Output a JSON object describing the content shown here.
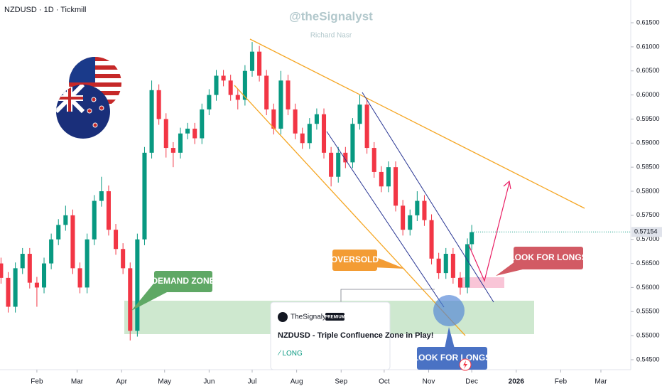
{
  "chart_data": {
    "type": "candlestick",
    "title": "NZDUSD · 1D · Tickmill",
    "watermark": "@theSignalyst",
    "subtitle": "Richard Nasr",
    "up_color": "#089981",
    "down_color": "#f23645",
    "xlim": [
      5.3,
      444.8
    ],
    "ylim": [
      0.54293,
      0.61973
    ],
    "xticks": [
      {
        "value": 31,
        "label": "Feb"
      },
      {
        "value": 59,
        "label": "Mar"
      },
      {
        "value": 90,
        "label": "Apr"
      },
      {
        "value": 120,
        "label": "May"
      },
      {
        "value": 151,
        "label": "Jun"
      },
      {
        "value": 181,
        "label": "Jul"
      },
      {
        "value": 212,
        "label": "Aug"
      },
      {
        "value": 243,
        "label": "Sep"
      },
      {
        "value": 273,
        "label": "Oct"
      },
      {
        "value": 304,
        "label": "Nov"
      },
      {
        "value": 334,
        "label": "Dec"
      },
      {
        "value": 365,
        "label": "2026"
      },
      {
        "value": 396,
        "label": "Feb"
      },
      {
        "value": 424,
        "label": "Mar"
      }
    ],
    "yticks": [
      {
        "value": 0.545,
        "label": "0.54500"
      },
      {
        "value": 0.55,
        "label": "0.55000"
      },
      {
        "value": 0.555,
        "label": "0.55500"
      },
      {
        "value": 0.56,
        "label": "0.56000"
      },
      {
        "value": 0.565,
        "label": "0.56500"
      },
      {
        "value": 0.57,
        "label": "0.57000"
      },
      {
        "value": 0.575,
        "label": "0.57500"
      },
      {
        "value": 0.58,
        "label": "0.58000"
      },
      {
        "value": 0.585,
        "label": "0.58500"
      },
      {
        "value": 0.59,
        "label": "0.59000"
      },
      {
        "value": 0.595,
        "label": "0.59500"
      },
      {
        "value": 0.6,
        "label": "0.60000"
      },
      {
        "value": 0.605,
        "label": "0.60500"
      },
      {
        "value": 0.61,
        "label": "0.61000"
      },
      {
        "value": 0.615,
        "label": "0.61500"
      }
    ],
    "last_price": 0.57154,
    "x": [
      6,
      11,
      16,
      21,
      26,
      31,
      36,
      41,
      46,
      51,
      56,
      61,
      66,
      71,
      76,
      81,
      86,
      91,
      96,
      101,
      106,
      111,
      116,
      121,
      126,
      131,
      136,
      141,
      146,
      151,
      156,
      161,
      166,
      171,
      176,
      181,
      186,
      191,
      196,
      201,
      206,
      211,
      216,
      221,
      226,
      231,
      236,
      241,
      246,
      251,
      256,
      261,
      266,
      271,
      276,
      281,
      286,
      291,
      296,
      301,
      306,
      311,
      316,
      321,
      326,
      331,
      334
    ],
    "open": [
      0.565,
      0.562,
      0.556,
      0.564,
      0.567,
      0.561,
      0.56,
      0.565,
      0.57,
      0.573,
      0.575,
      0.564,
      0.56,
      0.57,
      0.578,
      0.58,
      0.572,
      0.568,
      0.564,
      0.551,
      0.57,
      0.588,
      0.601,
      0.595,
      0.589,
      0.588,
      0.592,
      0.593,
      0.591,
      0.597,
      0.6,
      0.604,
      0.603,
      0.6,
      0.599,
      0.605,
      0.609,
      0.604,
      0.597,
      0.593,
      0.603,
      0.597,
      0.592,
      0.59,
      0.594,
      0.596,
      0.588,
      0.583,
      0.588,
      0.586,
      0.594,
      0.598,
      0.589,
      0.584,
      0.581,
      0.585,
      0.577,
      0.572,
      0.575,
      0.578,
      0.574,
      0.566,
      0.563,
      0.567,
      0.562,
      0.56,
      0.569
    ],
    "high": [
      0.5662,
      0.5632,
      0.5652,
      0.5682,
      0.5682,
      0.5622,
      0.5662,
      0.5712,
      0.5742,
      0.577,
      0.5762,
      0.5652,
      0.5712,
      0.5792,
      0.583,
      0.5812,
      0.5732,
      0.5692,
      0.5652,
      0.5712,
      0.5892,
      0.603,
      0.6022,
      0.5962,
      0.5902,
      0.5932,
      0.5942,
      0.5942,
      0.5982,
      0.6012,
      0.6052,
      0.6052,
      0.6042,
      0.6012,
      0.6062,
      0.611,
      0.6102,
      0.6052,
      0.5982,
      0.605,
      0.6042,
      0.5982,
      0.5932,
      0.5952,
      0.5972,
      0.5972,
      0.5892,
      0.5892,
      0.5892,
      0.5952,
      0.6,
      0.5992,
      0.5902,
      0.5852,
      0.5862,
      0.5862,
      0.5782,
      0.5762,
      0.58,
      0.5792,
      0.5752,
      0.5672,
      0.5682,
      0.5682,
      0.5632,
      0.5702,
      0.573
    ],
    "low": [
      0.5608,
      0.5548,
      0.5548,
      0.5628,
      0.5598,
      0.556,
      0.5588,
      0.5638,
      0.5688,
      0.5718,
      0.5628,
      0.5588,
      0.5588,
      0.5688,
      0.5768,
      0.5708,
      0.5668,
      0.5628,
      0.549,
      0.5498,
      0.5688,
      0.5868,
      0.5938,
      0.587,
      0.585,
      0.5868,
      0.5908,
      0.5898,
      0.5898,
      0.5958,
      0.5988,
      0.6018,
      0.5988,
      0.597,
      0.5978,
      0.6038,
      0.6028,
      0.5958,
      0.5918,
      0.5918,
      0.5958,
      0.5908,
      0.5888,
      0.5888,
      0.5928,
      0.5868,
      0.581,
      0.5818,
      0.5848,
      0.5848,
      0.5928,
      0.5878,
      0.5828,
      0.5798,
      0.5798,
      0.5758,
      0.5708,
      0.5708,
      0.5738,
      0.5728,
      0.5648,
      0.5618,
      0.5618,
      0.5608,
      0.5585,
      0.5588,
      0.5678
    ],
    "close": [
      0.562,
      0.556,
      0.564,
      0.567,
      0.561,
      0.56,
      0.565,
      0.57,
      0.573,
      0.575,
      0.564,
      0.56,
      0.57,
      0.578,
      0.58,
      0.572,
      0.568,
      0.564,
      0.551,
      0.57,
      0.588,
      0.601,
      0.595,
      0.589,
      0.588,
      0.592,
      0.593,
      0.591,
      0.597,
      0.6,
      0.604,
      0.603,
      0.6,
      0.599,
      0.605,
      0.609,
      0.604,
      0.597,
      0.593,
      0.603,
      0.597,
      0.592,
      0.59,
      0.594,
      0.596,
      0.588,
      0.583,
      0.588,
      0.586,
      0.594,
      0.598,
      0.589,
      0.584,
      0.581,
      0.585,
      0.577,
      0.572,
      0.575,
      0.578,
      0.574,
      0.566,
      0.563,
      0.567,
      0.562,
      0.56,
      0.569,
      0.5715
    ],
    "annotations": {
      "demand": "DEMAND ZONE",
      "oversold": "OVERSOLD",
      "longs_right": "LOOK FOR LONGS",
      "longs_bottom": "LOOK FOR LONGS"
    },
    "card": {
      "author": "TheSignalyst",
      "badge": "PREMIUM",
      "headline": "NZDUSD - Triple Confluence Zone in Play!",
      "direction": "LONG"
    }
  }
}
